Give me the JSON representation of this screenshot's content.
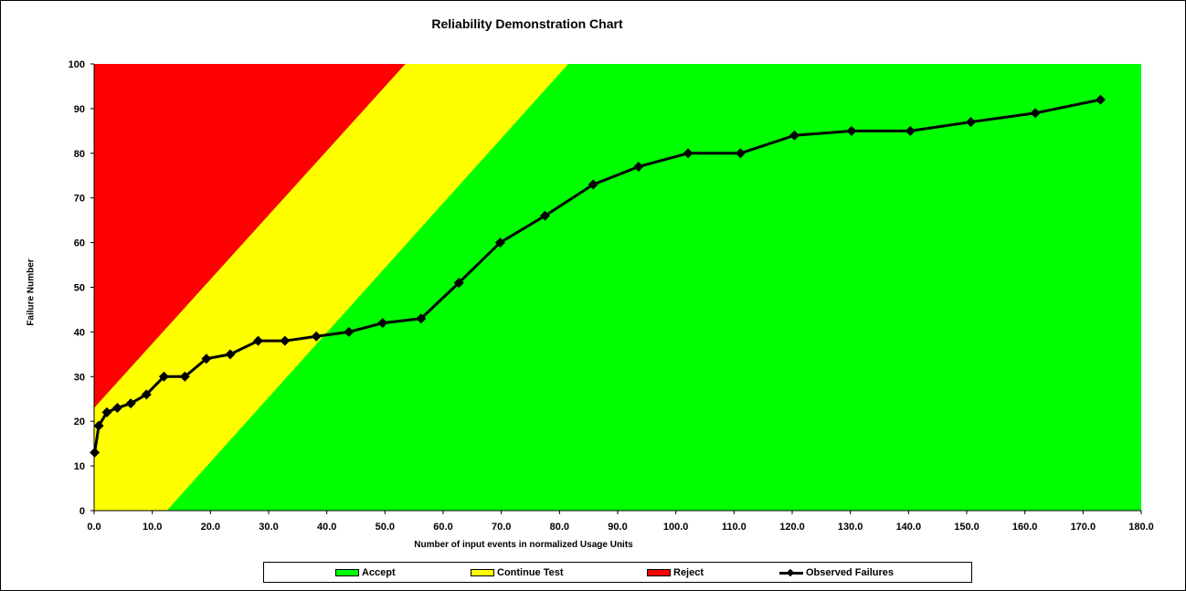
{
  "chart_data": {
    "type": "line",
    "title": "Reliability Demonstration Chart",
    "xlabel": "Number of input events in normalized Usage Units",
    "ylabel": "Failure Number",
    "xlim": [
      0,
      180
    ],
    "ylim": [
      0,
      100
    ],
    "x_ticks": [
      "0.0",
      "10.0",
      "20.0",
      "30.0",
      "40.0",
      "50.0",
      "60.0",
      "70.0",
      "80.0",
      "90.0",
      "100.0",
      "110.0",
      "120.0",
      "130.0",
      "140.0",
      "150.0",
      "160.0",
      "170.0",
      "180.0"
    ],
    "y_ticks": [
      "0",
      "10",
      "20",
      "30",
      "40",
      "50",
      "60",
      "70",
      "80",
      "90",
      "100"
    ],
    "grid": false,
    "legend_position": "bottom",
    "regions": [
      {
        "name": "Reject",
        "color": "#ff0000",
        "boundary": [
          [
            0,
            23
          ],
          [
            53.5,
            100
          ]
        ]
      },
      {
        "name": "Continue Test",
        "color": "#ffff00"
      },
      {
        "name": "Accept",
        "color": "#00ff00",
        "boundary": [
          [
            12.5,
            0
          ],
          [
            81.5,
            100
          ]
        ]
      }
    ],
    "series": [
      {
        "name": "Observed Failures",
        "color": "#000000",
        "x": [
          0.1,
          0.8,
          2.2,
          4.0,
          6.3,
          9.0,
          12.0,
          15.6,
          19.3,
          23.4,
          28.2,
          32.8,
          38.2,
          43.8,
          49.6,
          56.2,
          62.7,
          69.8,
          77.5,
          85.8,
          93.6,
          102.1,
          111.1,
          120.4,
          130.2,
          140.3,
          150.7,
          161.8,
          173.0
        ],
        "values": [
          13,
          19,
          22,
          23,
          24,
          26,
          30,
          30,
          34,
          35,
          38,
          38,
          39,
          40,
          42,
          43,
          51,
          60,
          66,
          73,
          77,
          80,
          80,
          84,
          85,
          85,
          87,
          89,
          92
        ]
      }
    ]
  },
  "legend": {
    "accept": "Accept",
    "continue": "Continue Test",
    "reject": "Reject",
    "observed": "Observed Failures"
  }
}
